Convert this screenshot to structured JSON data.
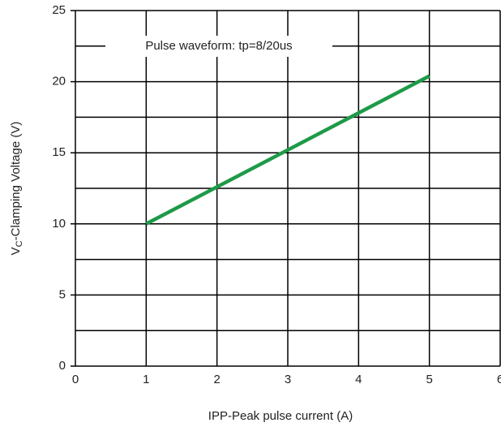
{
  "chart_data": {
    "type": "line",
    "annotation": "Pulse waveform: tp=8/20us",
    "xlabel": "IPP-Peak pulse current (A)",
    "ylabel": {
      "main": "V",
      "sub": "C",
      "rest": "-Clamping Voltage (V)"
    },
    "x": [
      1,
      5
    ],
    "series": [
      {
        "color": "#1e9a48",
        "values": [
          10,
          20.4
        ]
      }
    ],
    "xlim": [
      0,
      6
    ],
    "xticks": [
      0,
      1,
      2,
      3,
      4,
      5,
      6
    ],
    "ylim": [
      0,
      25
    ],
    "yticks": [
      0,
      5,
      10,
      15,
      20,
      25
    ],
    "yminor": [
      2.5,
      7.5,
      12.5,
      17.5,
      22.5
    ],
    "grid": true
  }
}
